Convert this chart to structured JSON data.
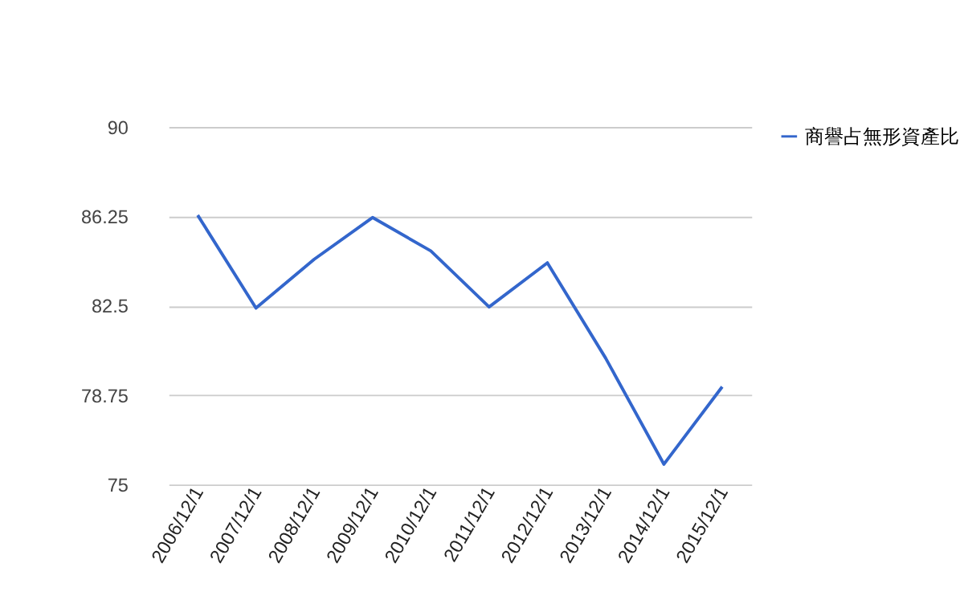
{
  "chart_data": {
    "type": "line",
    "categories": [
      "2006/12/1",
      "2007/12/1",
      "2008/12/1",
      "2009/12/1",
      "2010/12/1",
      "2011/12/1",
      "2012/12/1",
      "2013/12/1",
      "2014/12/1",
      "2015/12/1"
    ],
    "series": [
      {
        "name": "商譽占無形資產比",
        "color": "#3366cc",
        "values": [
          86.3,
          82.4,
          84.45,
          86.2,
          84.8,
          82.45,
          84.3,
          80.3,
          75.85,
          79.1
        ]
      }
    ],
    "ylim": [
      75,
      90
    ],
    "yticks": [
      75,
      78.75,
      82.5,
      86.25,
      90
    ],
    "grid": "y",
    "legend": "top right",
    "marker": "none",
    "line_style": "solid"
  }
}
